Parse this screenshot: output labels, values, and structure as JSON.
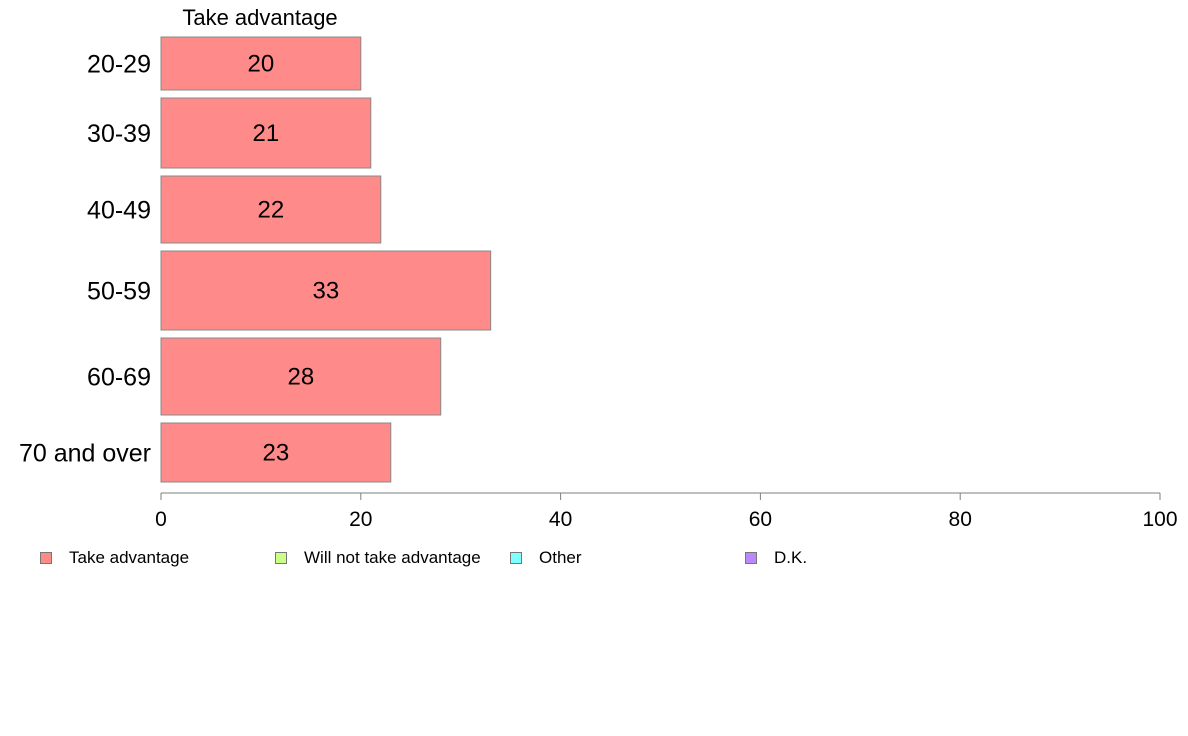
{
  "chart_data": {
    "type": "bar",
    "orientation": "horizontal",
    "series_label": "Take advantage",
    "categories": [
      "20-29",
      "30-39",
      "40-49",
      "50-59",
      "60-69",
      "70 and over"
    ],
    "series": [
      {
        "name": "Take advantage",
        "values": [
          20,
          21,
          22,
          33,
          28,
          23
        ]
      }
    ],
    "data_labels": [
      "20",
      "21",
      "22",
      "33",
      "28",
      "23"
    ],
    "xlim": [
      0,
      100
    ],
    "xticks": [
      0,
      20,
      40,
      60,
      80,
      100
    ],
    "xtick_labels": [
      "0",
      "20",
      "40",
      "60",
      "80",
      "100"
    ],
    "grid": false,
    "legend_position": "bottom",
    "legend": [
      {
        "label": "Take advantage",
        "color": "#ff8a8a"
      },
      {
        "label": "Will not take advantage",
        "color": "#ccff88"
      },
      {
        "label": "Other",
        "color": "#80ffff"
      },
      {
        "label": "D.K.",
        "color": "#b98aff"
      }
    ],
    "colors": {
      "bar_fill": "#ff8a8a",
      "bar_stroke": "#888888",
      "axis": "#7f7f7f"
    }
  }
}
